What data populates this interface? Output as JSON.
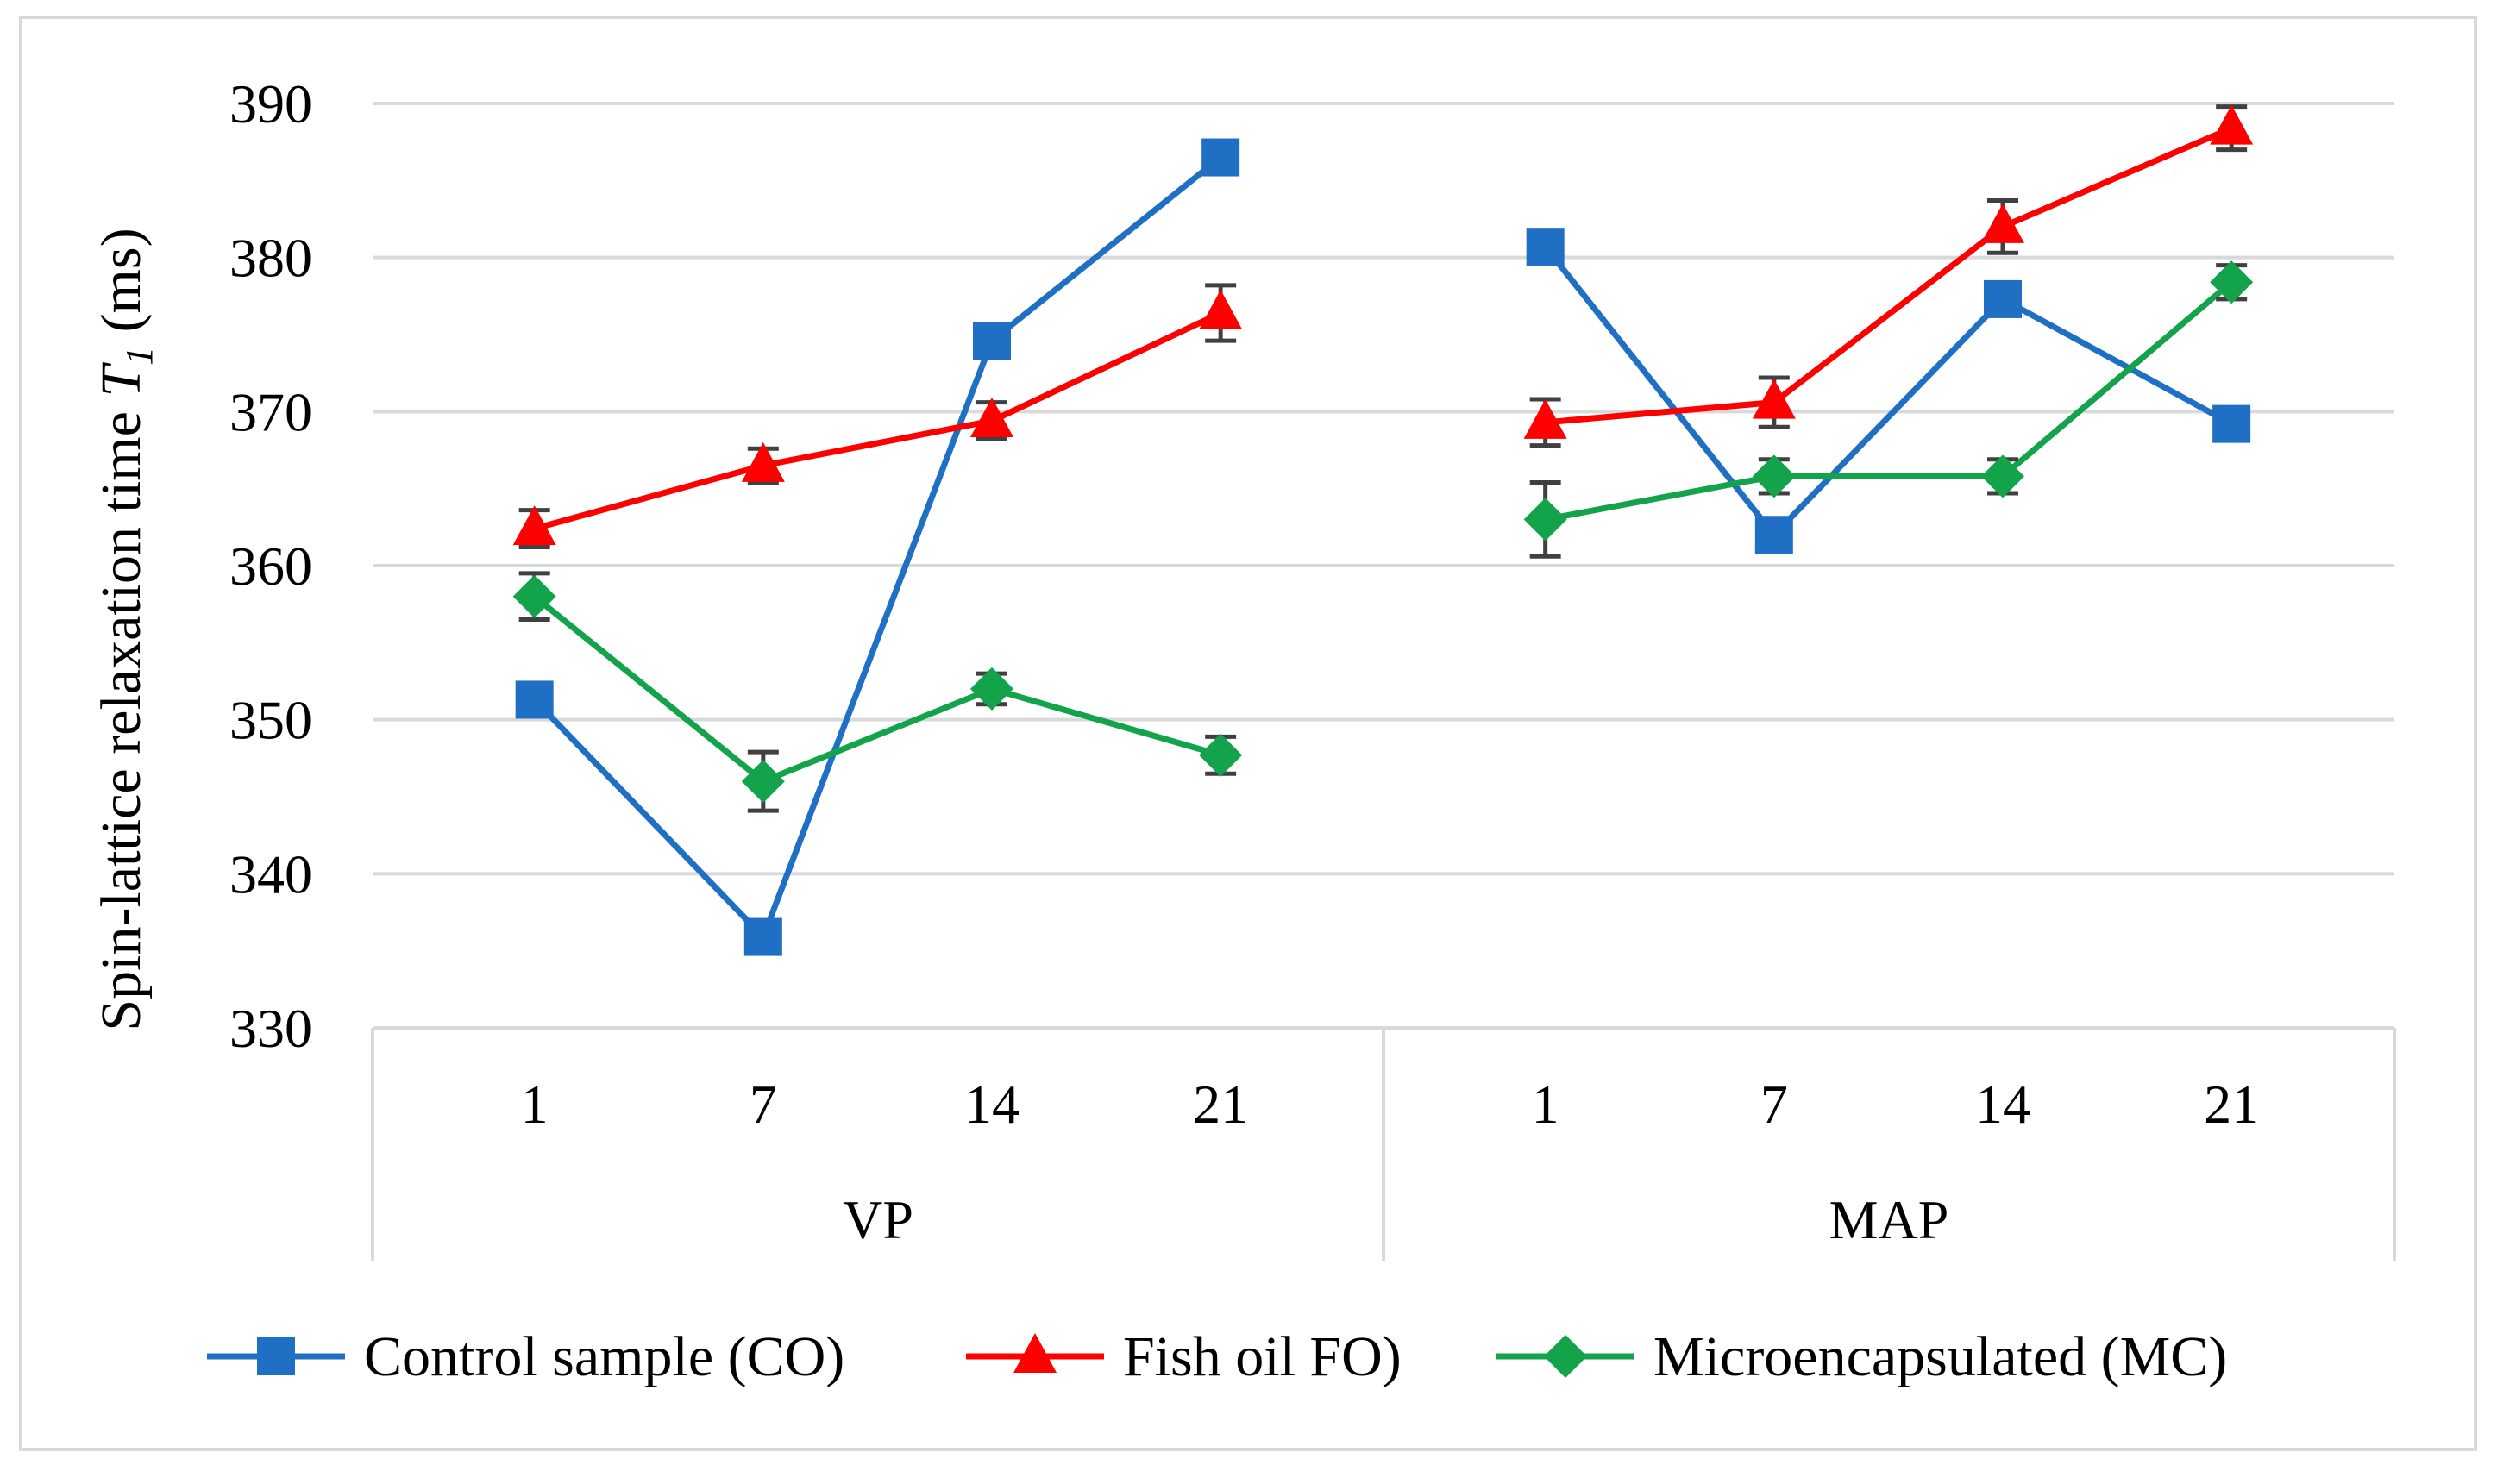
{
  "chart_data": {
    "type": "line",
    "title": "",
    "ylabel": "Spin-lattice relaxation time T1 (ms)",
    "ylabel_main": "Spin-lattice relaxation time ",
    "ylabel_var": "T",
    "ylabel_sub": "1",
    "ylabel_unit": " (ms)",
    "xlabel": "",
    "ylim": [
      330,
      390
    ],
    "yticks": [
      330,
      340,
      350,
      360,
      370,
      380,
      390
    ],
    "grid": true,
    "legend_position": "bottom",
    "groups": [
      {
        "name": "VP",
        "categories": [
          "1",
          "7",
          "14",
          "21"
        ]
      },
      {
        "name": "MAP",
        "categories": [
          "1",
          "7",
          "14",
          "21"
        ]
      }
    ],
    "series": [
      {
        "name": "Control sample (CO)",
        "color": "#1f6fc5",
        "marker": "square",
        "groups": [
          {
            "values": [
              351.3,
              335.9,
              374.6,
              386.5
            ],
            "errors": [
              0.6,
              0.5,
              0.6,
              0.4
            ]
          },
          {
            "values": [
              380.7,
              362.0,
              377.3,
              369.2
            ],
            "errors": [
              0.4,
              0.5,
              0.6,
              0.4
            ]
          }
        ]
      },
      {
        "name": "Fish oil FO)",
        "color": "#ff0000",
        "marker": "triangle",
        "groups": [
          {
            "values": [
              362.4,
              366.5,
              369.4,
              376.4
            ],
            "errors": [
              1.2,
              1.1,
              1.2,
              1.8
            ]
          },
          {
            "values": [
              369.3,
              370.6,
              382.0,
              388.4
            ],
            "errors": [
              1.5,
              1.6,
              1.7,
              1.4
            ]
          }
        ]
      },
      {
        "name": "Microencapsulated (MC)",
        "color": "#13a34a",
        "marker": "diamond",
        "groups": [
          {
            "values": [
              358.0,
              346.0,
              352.0,
              347.7
            ],
            "errors": [
              1.5,
              1.9,
              1.0,
              1.2
            ]
          },
          {
            "values": [
              363.0,
              365.8,
              365.8,
              378.4
            ],
            "errors": [
              2.4,
              1.1,
              1.1,
              1.1
            ]
          }
        ]
      }
    ]
  }
}
